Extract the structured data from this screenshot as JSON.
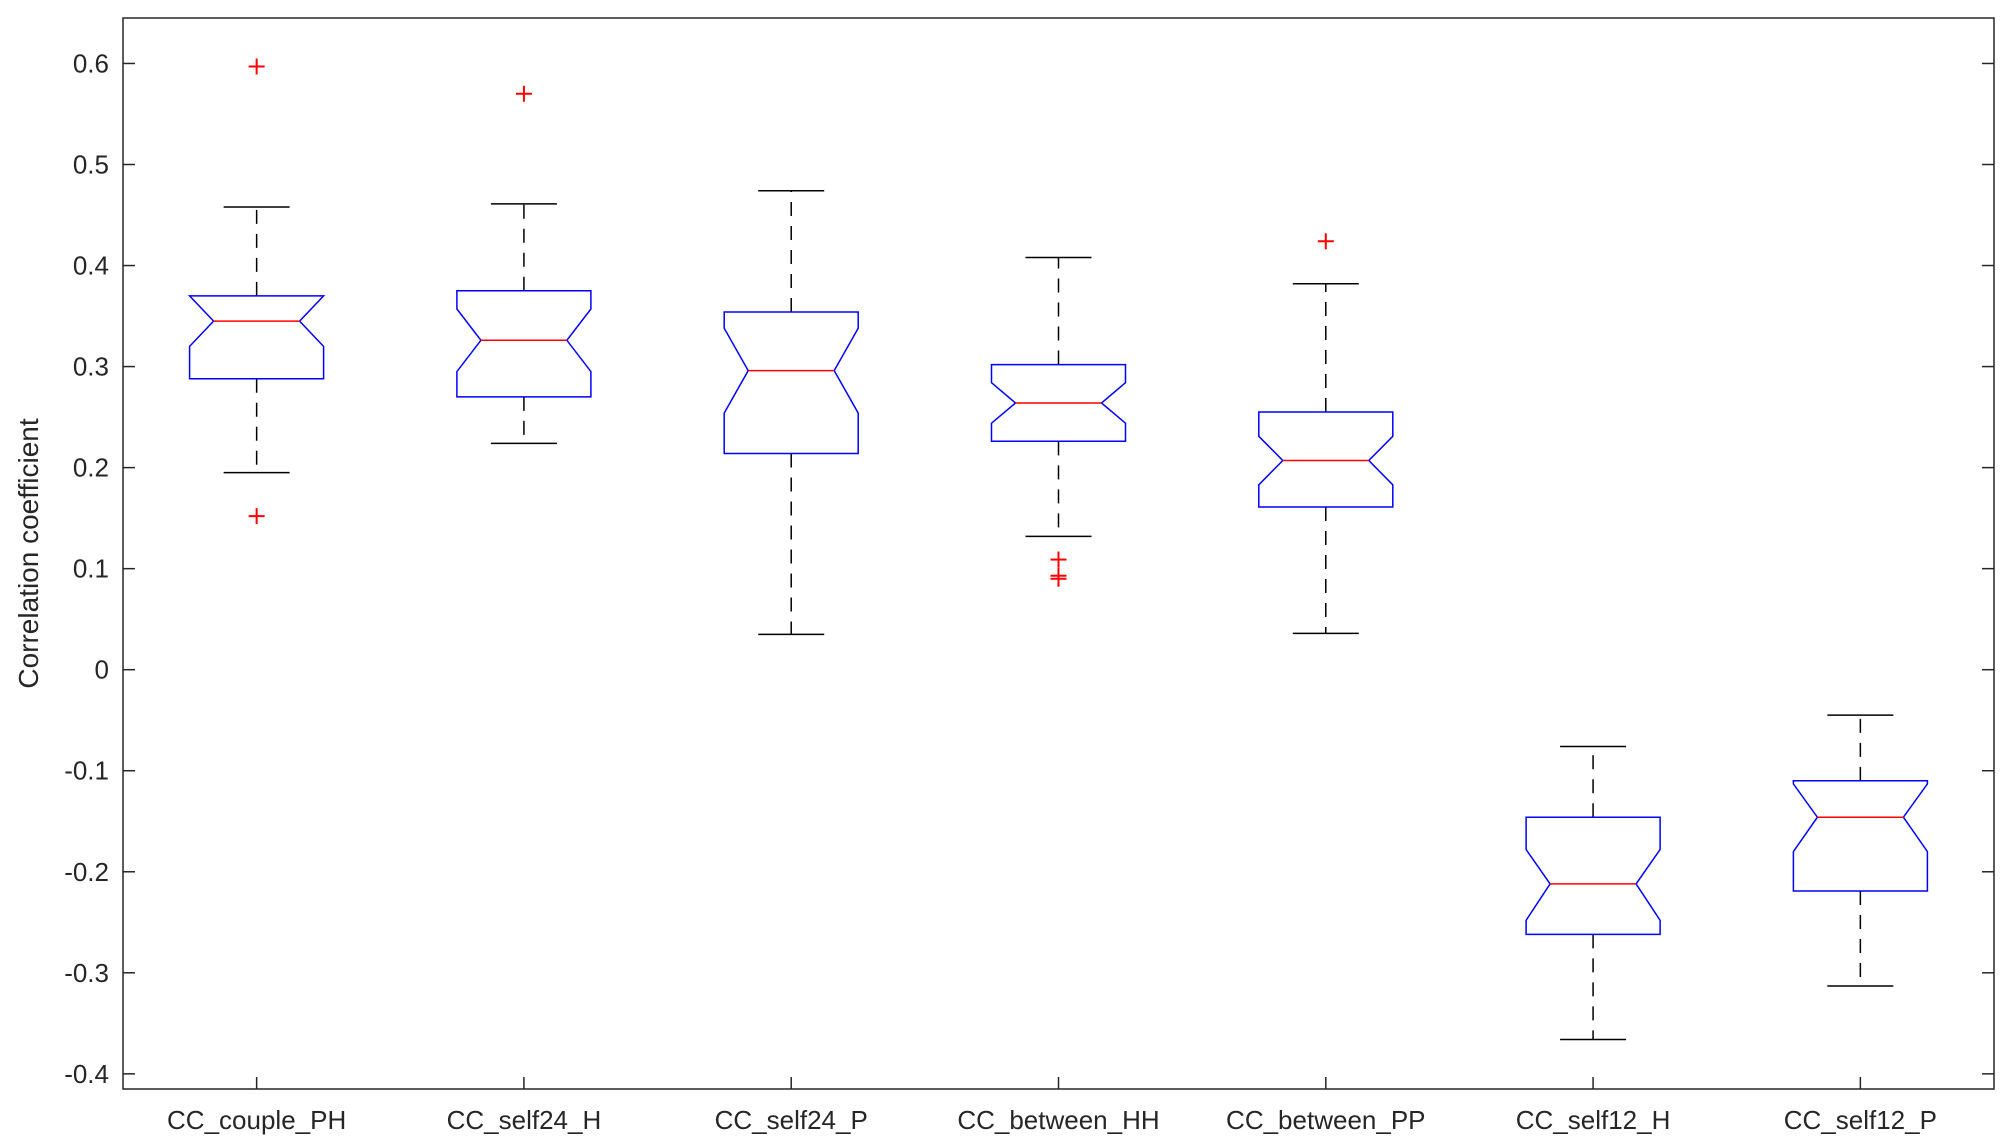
{
  "chart_data": {
    "type": "boxplot",
    "notched": true,
    "ylabel": "Correlation coefficient",
    "xlabel": "",
    "title": "",
    "ylim": [
      -0.415,
      0.645
    ],
    "yticks": [
      -0.4,
      -0.3,
      -0.2,
      -0.1,
      0,
      0.1,
      0.2,
      0.3,
      0.4,
      0.5,
      0.6
    ],
    "ytick_labels": [
      "-0.4",
      "-0.3",
      "-0.2",
      "-0.1",
      "0",
      "0.1",
      "0.2",
      "0.3",
      "0.4",
      "0.5",
      "0.6"
    ],
    "grid": false,
    "colors": {
      "box": "#0000ff",
      "median": "#ff0000",
      "whisker": "#000000",
      "outlier": "#ff0000",
      "axis": "#262626"
    },
    "boxes": [
      {
        "label": "CC_couple_PH",
        "whisker_low": 0.195,
        "q1": 0.288,
        "median": 0.345,
        "q3": 0.37,
        "whisker_high": 0.458,
        "notch_low": 0.32,
        "notch_high": 0.37,
        "outliers": [
          0.597,
          0.152
        ]
      },
      {
        "label": "CC_self24_H",
        "whisker_low": 0.224,
        "q1": 0.27,
        "median": 0.326,
        "q3": 0.375,
        "whisker_high": 0.461,
        "notch_low": 0.295,
        "notch_high": 0.357,
        "outliers": [
          0.57
        ]
      },
      {
        "label": "CC_self24_P",
        "whisker_low": 0.035,
        "q1": 0.214,
        "median": 0.296,
        "q3": 0.354,
        "whisker_high": 0.474,
        "notch_low": 0.254,
        "notch_high": 0.338,
        "outliers": []
      },
      {
        "label": "CC_between_HH",
        "whisker_low": 0.132,
        "q1": 0.226,
        "median": 0.264,
        "q3": 0.302,
        "whisker_high": 0.408,
        "notch_low": 0.244,
        "notch_high": 0.284,
        "outliers": [
          0.109,
          0.093,
          0.09
        ]
      },
      {
        "label": "CC_between_PP",
        "whisker_low": 0.036,
        "q1": 0.161,
        "median": 0.207,
        "q3": 0.255,
        "whisker_high": 0.382,
        "notch_low": 0.183,
        "notch_high": 0.231,
        "outliers": [
          0.424
        ]
      },
      {
        "label": "CC_self12_H",
        "whisker_low": -0.366,
        "q1": -0.262,
        "median": -0.212,
        "q3": -0.146,
        "whisker_high": -0.076,
        "notch_low": -0.248,
        "notch_high": -0.178,
        "outliers": []
      },
      {
        "label": "CC_self12_P",
        "whisker_low": -0.313,
        "q1": -0.219,
        "median": -0.146,
        "q3": -0.11,
        "whisker_high": -0.045,
        "notch_low": -0.18,
        "notch_high": -0.113,
        "outliers": []
      }
    ]
  }
}
